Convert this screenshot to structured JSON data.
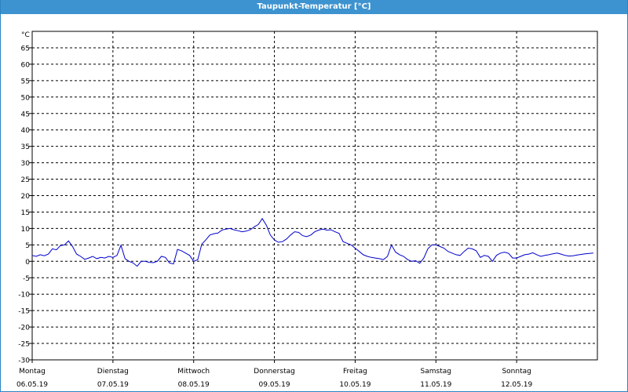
{
  "window": {
    "title": "Taupunkt-Temperatur [°C]"
  },
  "chart_data": {
    "type": "line",
    "title": "Taupunkt-Temperatur [°C]",
    "ylabel": "°C",
    "xlabel": "",
    "ylim": [
      -30,
      70
    ],
    "yticks": [
      65,
      60,
      55,
      50,
      45,
      40,
      35,
      30,
      25,
      20,
      15,
      10,
      5,
      0,
      -5,
      -10,
      -15,
      -20,
      -25,
      -30
    ],
    "xlim": [
      0,
      7
    ],
    "x_ticks": [
      {
        "day": "Montag",
        "date": "06.05.19"
      },
      {
        "day": "Dienstag",
        "date": "07.05.19"
      },
      {
        "day": "Mittwoch",
        "date": "08.05.19"
      },
      {
        "day": "Donnerstag",
        "date": "09.05.19"
      },
      {
        "day": "Freitag",
        "date": "10.05.19"
      },
      {
        "day": "Samstag",
        "date": "11.05.19"
      },
      {
        "day": "Sonntag",
        "date": "12.05.19"
      }
    ],
    "grid": true,
    "colors": {
      "series": "#0000cc",
      "grid": "#000000",
      "title_bar": "#3d93cf"
    },
    "series": [
      {
        "x": [
          0.0,
          0.05,
          0.1,
          0.15,
          0.2,
          0.25,
          0.3,
          0.35,
          0.4,
          0.45,
          0.5,
          0.55,
          0.6,
          0.65,
          0.7,
          0.75,
          0.8,
          0.85,
          0.9,
          0.95,
          1.0,
          1.05,
          1.1,
          1.15,
          1.2,
          1.25,
          1.3,
          1.35,
          1.4,
          1.45,
          1.5,
          1.55,
          1.6,
          1.65,
          1.7,
          1.75,
          1.8,
          1.85,
          1.9,
          1.95,
          2.0,
          2.05,
          2.1,
          2.15,
          2.2,
          2.25,
          2.3,
          2.35,
          2.4,
          2.45,
          2.5,
          2.55,
          2.6,
          2.65,
          2.7,
          2.75,
          2.8,
          2.85,
          2.9,
          2.95,
          3.0,
          3.05,
          3.1,
          3.15,
          3.2,
          3.25,
          3.3,
          3.35,
          3.4,
          3.45,
          3.5,
          3.55,
          3.6,
          3.65,
          3.7,
          3.75,
          3.8,
          3.85,
          3.9,
          3.95,
          4.0,
          4.05,
          4.1,
          4.15,
          4.2,
          4.25,
          4.3,
          4.35,
          4.4,
          4.45,
          4.5,
          4.55,
          4.6,
          4.65,
          4.7,
          4.75,
          4.8,
          4.85,
          4.9,
          4.95,
          5.0,
          5.05,
          5.1,
          5.15,
          5.2,
          5.25,
          5.3,
          5.35,
          5.4,
          5.45,
          5.5,
          5.55,
          5.6,
          5.65,
          5.7,
          5.75,
          5.8,
          5.85,
          5.9,
          5.95,
          6.0,
          6.05,
          6.1,
          6.15,
          6.2,
          6.25,
          6.3,
          6.35,
          6.4,
          6.45,
          6.5,
          6.55,
          6.6,
          6.65,
          6.7,
          6.75,
          6.8,
          6.85,
          6.9,
          6.95
        ],
        "values": [
          1.8,
          1.5,
          2.0,
          1.7,
          2.2,
          3.8,
          3.5,
          4.8,
          5.0,
          6.2,
          4.5,
          2.2,
          1.5,
          0.6,
          1.0,
          1.5,
          0.8,
          1.2,
          1.0,
          1.5,
          1.2,
          1.8,
          4.9,
          0.8,
          0.0,
          -0.5,
          -1.5,
          0.0,
          0.0,
          -0.3,
          -0.4,
          0.0,
          1.5,
          1.2,
          -0.5,
          -0.8,
          3.6,
          3.2,
          2.5,
          1.8,
          0.0,
          0.5,
          5.2,
          6.5,
          8.0,
          8.4,
          8.6,
          9.5,
          9.8,
          10.0,
          9.6,
          9.3,
          9.0,
          9.2,
          9.6,
          10.5,
          11.2,
          13.0,
          11.0,
          8.0,
          6.5,
          5.8,
          6.0,
          6.8,
          8.0,
          9.0,
          8.8,
          7.8,
          7.5,
          8.0,
          9.0,
          9.5,
          9.8,
          9.5,
          9.6,
          9.0,
          8.5,
          6.0,
          5.5,
          5.0,
          4.0,
          3.0,
          2.0,
          1.5,
          1.2,
          1.0,
          0.8,
          0.5,
          1.5,
          5.0,
          2.8,
          2.0,
          1.5,
          0.5,
          0.0,
          0.2,
          -0.6,
          1.0,
          3.8,
          5.0,
          5.0,
          4.5,
          4.0,
          3.0,
          2.5,
          2.0,
          1.8,
          3.0,
          4.0,
          3.8,
          3.2,
          1.2,
          1.8,
          1.5,
          0.0,
          1.8,
          2.5,
          2.8,
          2.4,
          1.0,
          1.0,
          1.5,
          2.0,
          2.2,
          2.6,
          2.0,
          1.5,
          1.8,
          2.0,
          2.3,
          2.5,
          2.2,
          1.8,
          1.6,
          1.7,
          1.9,
          2.1,
          2.3,
          2.4,
          2.5
        ]
      }
    ]
  }
}
